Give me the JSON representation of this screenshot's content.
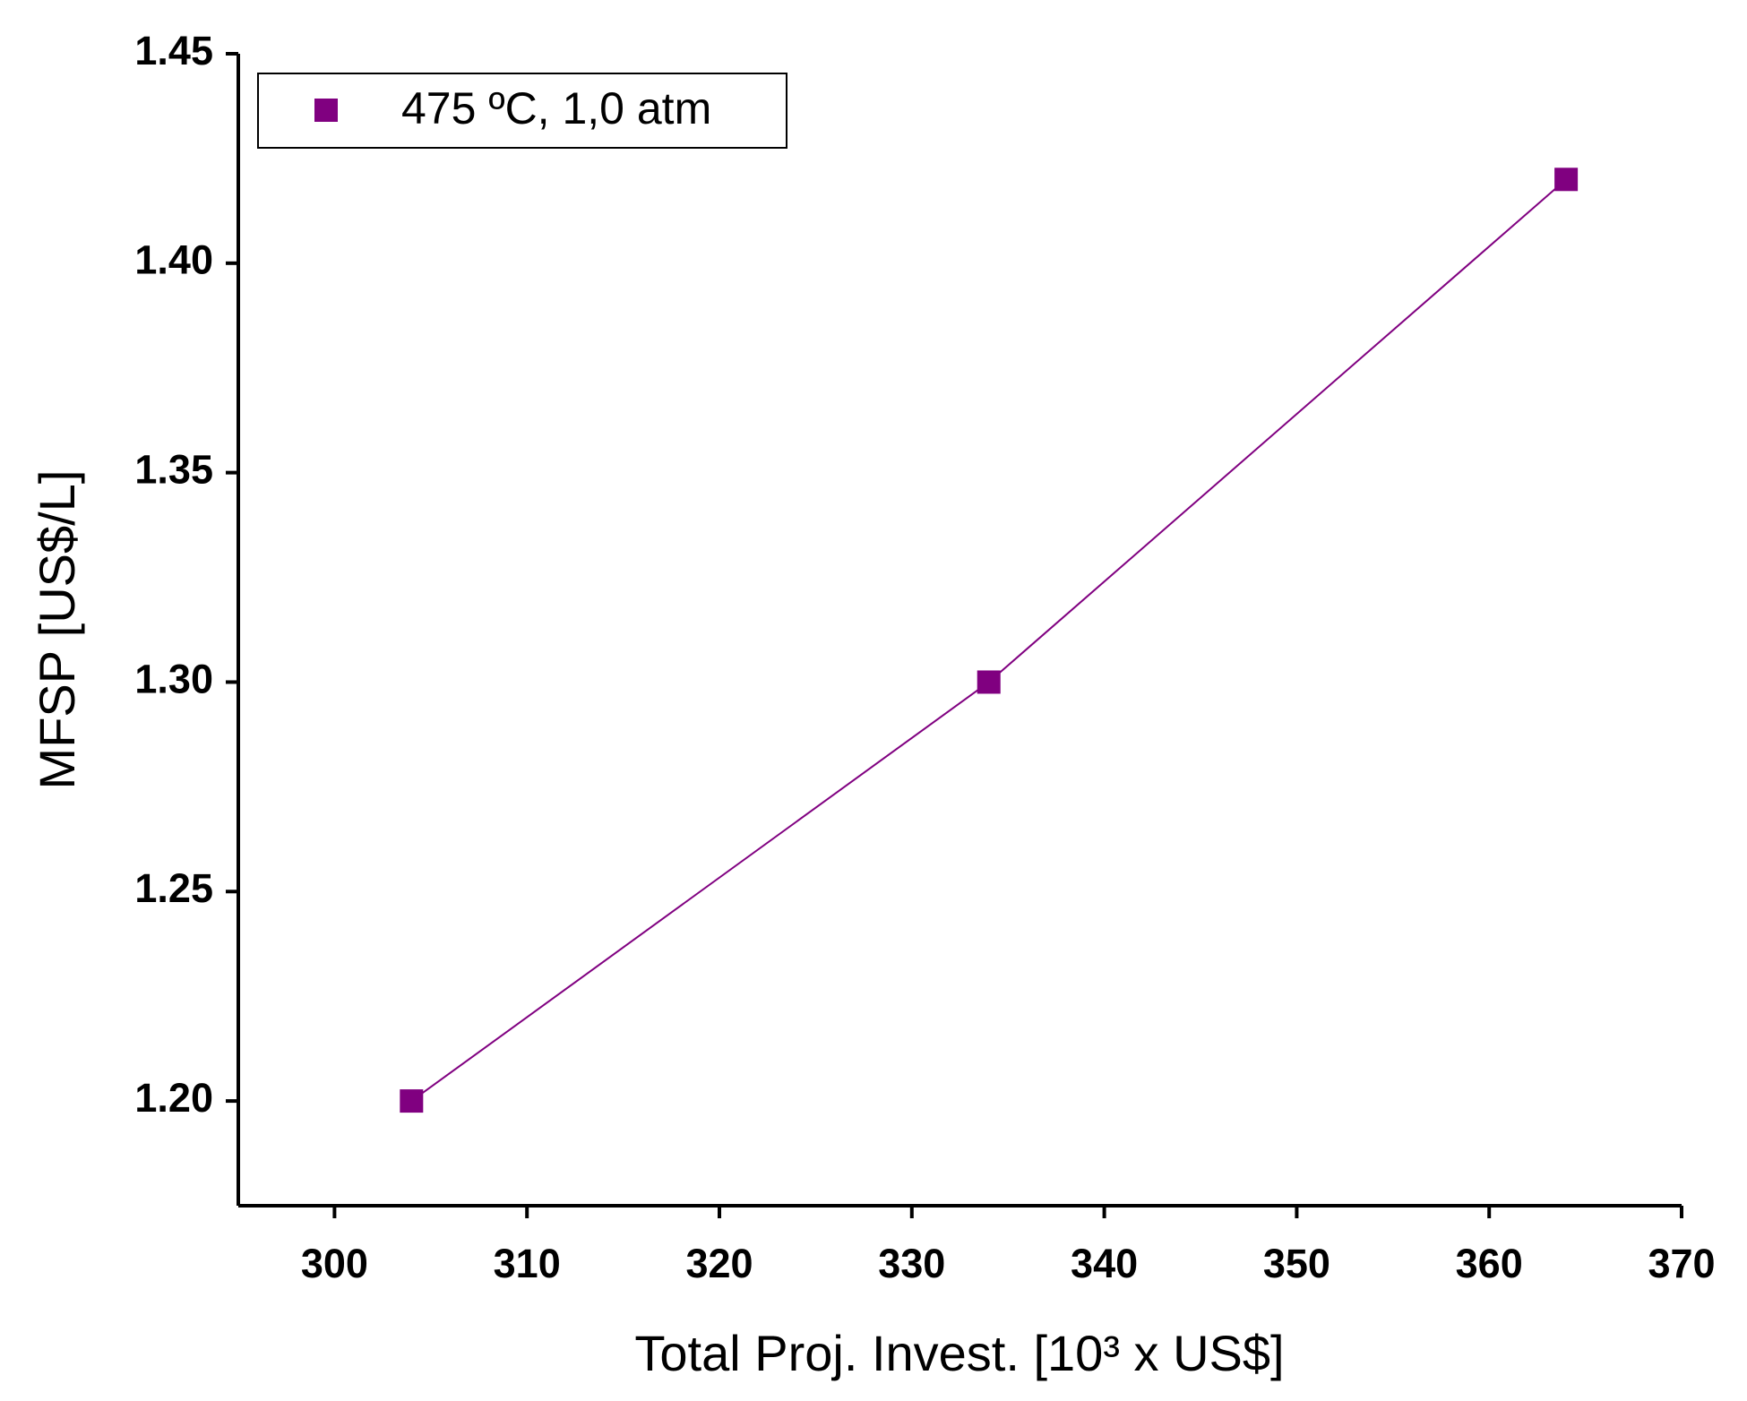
{
  "chart_data": {
    "type": "line",
    "xlabel": "Total Proj. Invest. [10³ x US$]",
    "ylabel": "MFSP [US$/L]",
    "x": [
      304,
      334,
      364
    ],
    "series": [
      {
        "name": "475 ºC, 1,0 atm",
        "color": "#800080",
        "values": [
          1.2,
          1.3,
          1.42
        ]
      }
    ],
    "xlim": [
      295,
      370
    ],
    "xticks": [
      300,
      310,
      320,
      330,
      340,
      350,
      360,
      370
    ],
    "ylim": [
      1.175,
      1.45
    ],
    "yticks": [
      {
        "value": 1.2,
        "label": "1.20"
      },
      1.25,
      {
        "value": 1.3,
        "label": "1.30"
      },
      1.35,
      {
        "value": 1.4,
        "label": "1.40"
      },
      1.45
    ],
    "legend": "top-left"
  }
}
